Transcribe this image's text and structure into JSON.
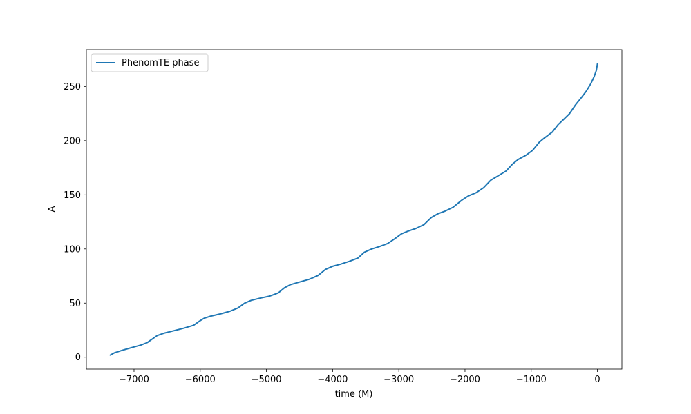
{
  "chart_data": {
    "type": "line",
    "title": "",
    "xlabel": "time (M)",
    "ylabel": "A",
    "xlim": [
      -7720,
      370
    ],
    "ylim": [
      -11,
      284
    ],
    "x_ticks": [
      -7000,
      -6000,
      -5000,
      -4000,
      -3000,
      -2000,
      -1000,
      0
    ],
    "x_tick_labels": [
      "−7000",
      "−6000",
      "−5000",
      "−4000",
      "−3000",
      "−2000",
      "−1000",
      "0"
    ],
    "y_ticks": [
      0,
      50,
      100,
      150,
      200,
      250
    ],
    "y_tick_labels": [
      "0",
      "50",
      "100",
      "150",
      "200",
      "250"
    ],
    "grid": false,
    "legend": {
      "position": "top-left",
      "entries": [
        "PhenomTE phase"
      ]
    },
    "series": [
      {
        "name": "PhenomTE phase",
        "color": "#1f77b4",
        "points": [
          [
            -7360,
            2
          ],
          [
            -7300,
            4
          ],
          [
            -7200,
            6
          ],
          [
            -7100,
            7.8
          ],
          [
            -7000,
            9.5
          ],
          [
            -6900,
            11.2
          ],
          [
            -6800,
            13.5
          ],
          [
            -6720,
            17
          ],
          [
            -6650,
            20
          ],
          [
            -6550,
            22.2
          ],
          [
            -6400,
            24.5
          ],
          [
            -6250,
            26.8
          ],
          [
            -6100,
            29.5
          ],
          [
            -6020,
            33
          ],
          [
            -5940,
            36
          ],
          [
            -5850,
            37.8
          ],
          [
            -5700,
            40
          ],
          [
            -5550,
            42.5
          ],
          [
            -5430,
            45.5
          ],
          [
            -5330,
            50
          ],
          [
            -5230,
            52.5
          ],
          [
            -5100,
            54.5
          ],
          [
            -4950,
            56.5
          ],
          [
            -4820,
            59.5
          ],
          [
            -4730,
            64
          ],
          [
            -4640,
            67
          ],
          [
            -4500,
            69.5
          ],
          [
            -4350,
            72
          ],
          [
            -4220,
            75.5
          ],
          [
            -4110,
            81
          ],
          [
            -4000,
            84
          ],
          [
            -3880,
            86
          ],
          [
            -3750,
            88.5
          ],
          [
            -3620,
            91.5
          ],
          [
            -3520,
            97
          ],
          [
            -3410,
            100
          ],
          [
            -3300,
            102
          ],
          [
            -3170,
            105
          ],
          [
            -3060,
            109.5
          ],
          [
            -2960,
            114
          ],
          [
            -2860,
            116.5
          ],
          [
            -2740,
            119
          ],
          [
            -2620,
            122.5
          ],
          [
            -2510,
            129
          ],
          [
            -2410,
            132.5
          ],
          [
            -2300,
            135
          ],
          [
            -2180,
            138.5
          ],
          [
            -2050,
            145
          ],
          [
            -1950,
            149
          ],
          [
            -1830,
            152
          ],
          [
            -1720,
            156.5
          ],
          [
            -1610,
            163.5
          ],
          [
            -1500,
            167.5
          ],
          [
            -1380,
            172
          ],
          [
            -1280,
            178.5
          ],
          [
            -1200,
            182.5
          ],
          [
            -1080,
            186.5
          ],
          [
            -980,
            191
          ],
          [
            -880,
            198.5
          ],
          [
            -800,
            202.5
          ],
          [
            -680,
            208
          ],
          [
            -590,
            215
          ],
          [
            -520,
            219
          ],
          [
            -420,
            225
          ],
          [
            -330,
            233
          ],
          [
            -240,
            240
          ],
          [
            -170,
            245.5
          ],
          [
            -100,
            252.5
          ],
          [
            -50,
            259
          ],
          [
            -15,
            265
          ],
          [
            0,
            271
          ]
        ]
      }
    ]
  }
}
